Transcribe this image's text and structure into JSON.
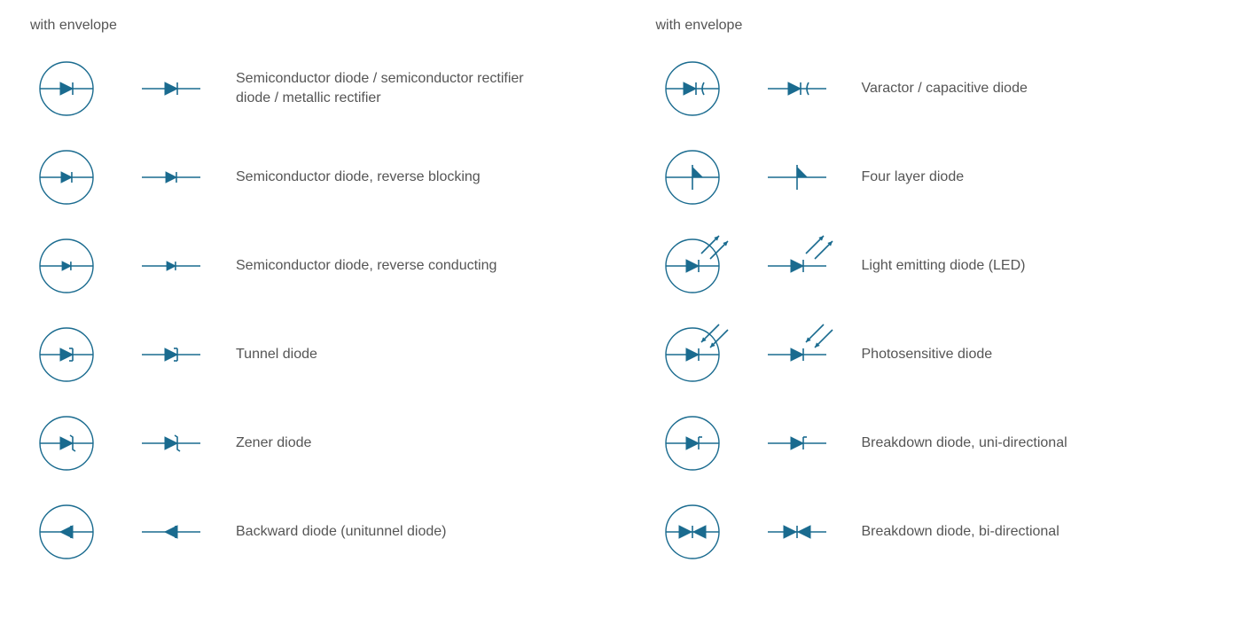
{
  "colors": {
    "stroke": "#1a6b8f",
    "fill": "#1a6b8f",
    "text": "#555555",
    "background": "#ffffff"
  },
  "header": {
    "left": "with envelope",
    "right": "with envelope"
  },
  "left_column": [
    {
      "label": "Semiconductor diode / semiconductor rectifier diode / metallic rectifier",
      "kind": "basic"
    },
    {
      "label": "Semiconductor diode, reverse blocking",
      "kind": "basic_small"
    },
    {
      "label": "Semiconductor diode, reverse conducting",
      "kind": "basic_tiny"
    },
    {
      "label": "Tunnel diode",
      "kind": "tunnel"
    },
    {
      "label": "Zener diode",
      "kind": "zener"
    },
    {
      "label": "Backward diode (unitunnel diode)",
      "kind": "backward"
    }
  ],
  "right_column": [
    {
      "label": "Varactor / capacitive diode",
      "kind": "varactor"
    },
    {
      "label": "Four layer diode",
      "kind": "fourlayer"
    },
    {
      "label": "Light emitting diode (LED)",
      "kind": "led"
    },
    {
      "label": "Photosensitive diode",
      "kind": "photo"
    },
    {
      "label": "Breakdown diode, uni-directional",
      "kind": "breakdown_uni"
    },
    {
      "label": "Breakdown diode, bi-directional",
      "kind": "breakdown_bi"
    }
  ],
  "symbol_style": {
    "envelope_radius": 30,
    "stroke_width": 1.4,
    "triangle_size": 8,
    "lead_length_env": 60,
    "lead_length_plain": 54
  }
}
